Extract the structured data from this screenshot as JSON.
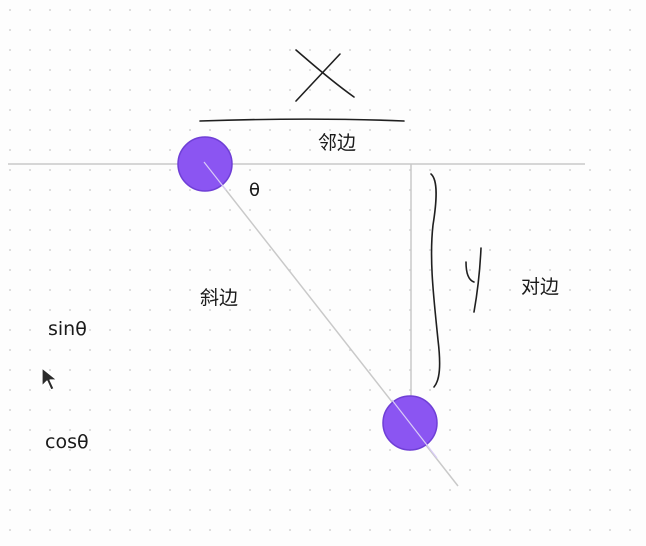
{
  "diagram": {
    "labels": {
      "adjacent": "邻边",
      "opposite": "对边",
      "hypotenuse": "斜边",
      "angle": "θ",
      "sin": "sinθ",
      "cos": "cosθ"
    },
    "handwritten": {
      "x_mark": "X",
      "y_mark": "Y"
    },
    "colors": {
      "point_fill": "#8b55f2",
      "point_stroke": "#6f3fd6",
      "line": "#c9c9c9",
      "ink": "#1a1a1a"
    }
  }
}
